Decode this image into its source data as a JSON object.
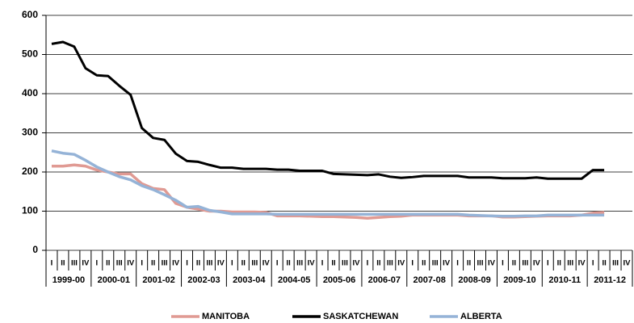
{
  "chart_data": {
    "type": "line",
    "categories": [
      "I",
      "II",
      "III",
      "IV",
      "I",
      "II",
      "III",
      "IV",
      "I",
      "II",
      "III",
      "IV",
      "I",
      "II",
      "III",
      "IV",
      "I",
      "II",
      "III",
      "IV",
      "I",
      "II",
      "III",
      "IV",
      "I",
      "II",
      "III",
      "IV",
      "I",
      "II",
      "III",
      "IV",
      "I",
      "II",
      "III",
      "IV",
      "I",
      "II",
      "III",
      "IV",
      "I",
      "II",
      "III",
      "IV",
      "I",
      "II",
      "III",
      "IV",
      "I",
      "II",
      "III",
      "IV"
    ],
    "groups": [
      "1999-00",
      "2000-01",
      "2001-02",
      "2002-03",
      "2003-04",
      "2004-05",
      "2005-06",
      "2006-07",
      "2007-08",
      "2008-09",
      "2009-10",
      "2010-11",
      "2011-12"
    ],
    "series": [
      {
        "name": "MANITOBA",
        "color": "#e09a93",
        "values": [
          215,
          215,
          218,
          215,
          205,
          200,
          195,
          195,
          170,
          158,
          155,
          120,
          110,
          105,
          100,
          100,
          98,
          98,
          98,
          97,
          88,
          88,
          88,
          87,
          86,
          86,
          85,
          84,
          82,
          84,
          86,
          87,
          90,
          90,
          90,
          90,
          90,
          88,
          88,
          88,
          85,
          85,
          86,
          87,
          88,
          88,
          88,
          90,
          95,
          97,
          null,
          null
        ]
      },
      {
        "name": "SASKATCHEWAN",
        "color": "#000000",
        "values": [
          527,
          532,
          520,
          465,
          447,
          445,
          420,
          397,
          312,
          287,
          282,
          247,
          228,
          226,
          218,
          211,
          211,
          208,
          208,
          208,
          206,
          206,
          203,
          203,
          203,
          195,
          194,
          193,
          192,
          194,
          188,
          185,
          187,
          190,
          190,
          190,
          190,
          186,
          186,
          186,
          184,
          184,
          184,
          186,
          183,
          183,
          183,
          183,
          205,
          205,
          null,
          null
        ]
      },
      {
        "name": "ALBERTA",
        "color": "#95b3d7",
        "values": [
          254,
          248,
          245,
          230,
          213,
          200,
          188,
          180,
          165,
          155,
          142,
          128,
          110,
          112,
          102,
          98,
          93,
          93,
          93,
          93,
          92,
          92,
          92,
          92,
          92,
          92,
          92,
          92,
          92,
          92,
          92,
          92,
          92,
          92,
          92,
          92,
          92,
          90,
          89,
          88,
          87,
          87,
          88,
          88,
          90,
          90,
          90,
          90,
          90,
          90,
          null,
          null
        ]
      }
    ],
    "ylim": [
      0,
      600
    ],
    "yticks": [
      0,
      100,
      200,
      300,
      400,
      500,
      600
    ],
    "grid": true,
    "legend": "bottom"
  }
}
